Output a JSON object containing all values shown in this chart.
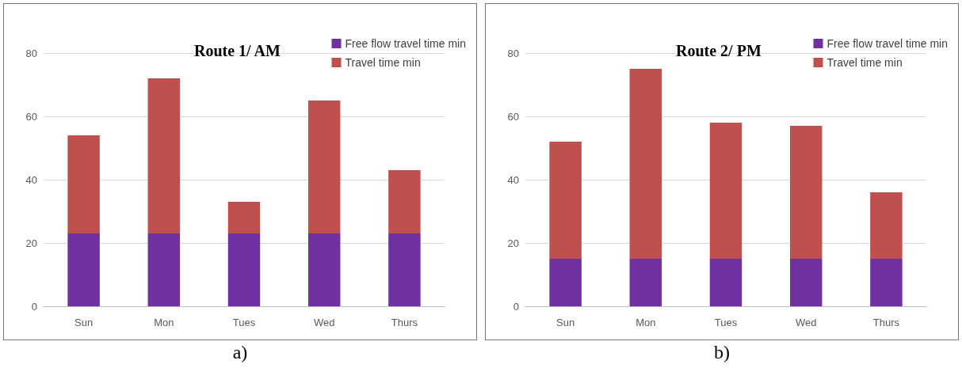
{
  "chart_data": [
    {
      "type": "bar",
      "title": "Route 1/ AM",
      "categories": [
        "Sun",
        "Mon",
        "Tues",
        "Wed",
        "Thurs"
      ],
      "stacked": true,
      "legend": "top right",
      "grid": "y",
      "ylim": [
        0,
        80
      ],
      "yticks": [
        0,
        20,
        40,
        60,
        80
      ],
      "annotations": [
        "a)"
      ],
      "series": [
        {
          "name": "Free flow travel time min",
          "color": "#7030a0",
          "values": [
            23,
            23,
            23,
            23,
            23
          ]
        },
        {
          "name": "Travel time min",
          "color": "#c0504d",
          "values": [
            31,
            49,
            10,
            42,
            20
          ]
        }
      ]
    },
    {
      "type": "bar",
      "title": "Route 2/ PM",
      "categories": [
        "Sun",
        "Mon",
        "Tues",
        "Wed",
        "Thurs"
      ],
      "stacked": true,
      "legend": "top right",
      "grid": "y",
      "ylim": [
        0,
        80
      ],
      "yticks": [
        0,
        20,
        40,
        60,
        80
      ],
      "annotations": [
        "b)"
      ],
      "series": [
        {
          "name": "Free flow travel time min",
          "color": "#7030a0",
          "values": [
            15,
            15,
            15,
            15,
            15
          ]
        },
        {
          "name": "Travel time min",
          "color": "#c0504d",
          "values": [
            37,
            60,
            43,
            42,
            21
          ]
        }
      ]
    }
  ]
}
